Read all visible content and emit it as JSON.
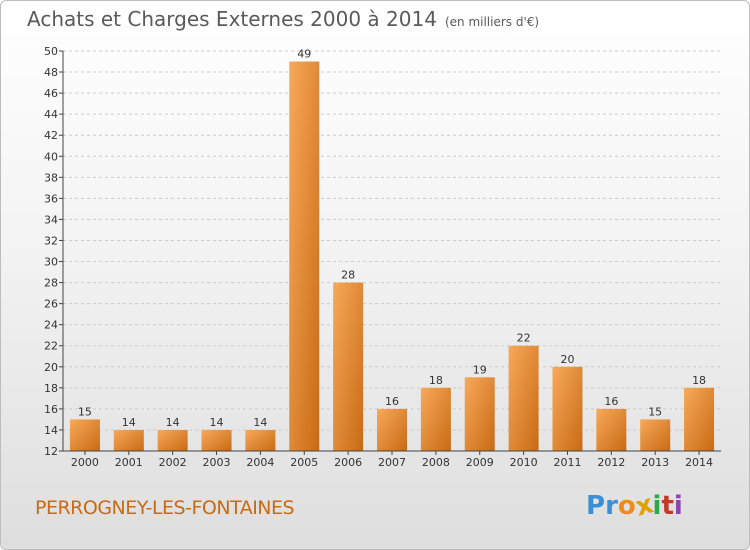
{
  "title": "Achats et Charges Externes 2000 à 2014",
  "unit": "(en milliers d'€)",
  "place": "PERROGNEY-LES-FONTAINES",
  "logo": {
    "letters": [
      "P",
      "r",
      "o",
      "x",
      "i",
      "t",
      "i"
    ],
    "colors": [
      "#3c8fd6",
      "#3c8fd6",
      "#f08a1c",
      "#e0a000",
      "#2aa84a",
      "#c0392b",
      "#8e44ad"
    ]
  },
  "colors": {
    "bar_light": "#f7a95a",
    "bar_dark": "#c86a14",
    "axis": "#444444",
    "grid": "#cccccc"
  },
  "chart_data": {
    "type": "bar",
    "categories": [
      "2000",
      "2001",
      "2002",
      "2003",
      "2004",
      "2005",
      "2006",
      "2007",
      "2008",
      "2009",
      "2010",
      "2011",
      "2012",
      "2013",
      "2014"
    ],
    "values": [
      15,
      14,
      14,
      14,
      14,
      49,
      28,
      16,
      18,
      19,
      22,
      20,
      16,
      15,
      18
    ],
    "ylim": [
      12,
      50
    ],
    "yticks": [
      12,
      14,
      16,
      18,
      20,
      22,
      24,
      26,
      28,
      30,
      32,
      34,
      36,
      38,
      40,
      42,
      44,
      46,
      48,
      50
    ],
    "title": "Achats et Charges Externes 2000 à 2014",
    "xlabel": "",
    "ylabel": "",
    "data_labels": true,
    "grid": "y-dashed"
  }
}
